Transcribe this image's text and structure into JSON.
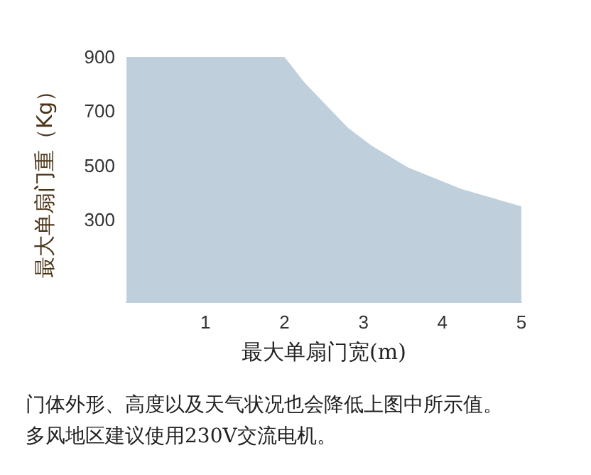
{
  "chart_data": {
    "type": "area",
    "xlabel": "最大单扇门宽(m)",
    "ylabel": "最大单扇门重（Kg）",
    "annotations": [
      "门体外形、高度以及天气状况也会降低上图中所示值。",
      "多风地区建议使用230V交流电机。"
    ],
    "x": [
      0,
      2,
      2.25,
      2.54,
      2.81,
      3.1,
      3.56,
      4.24,
      5
    ],
    "values": [
      900,
      900,
      807,
      719,
      638,
      574,
      494,
      414,
      350
    ],
    "color": "#bfd0dc",
    "marker": "none",
    "xlim": [
      0,
      5
    ],
    "xticks": [
      1,
      2,
      3,
      4,
      5
    ],
    "ylim": [
      0,
      900
    ],
    "yticks": [
      300,
      500,
      700,
      900
    ]
  }
}
